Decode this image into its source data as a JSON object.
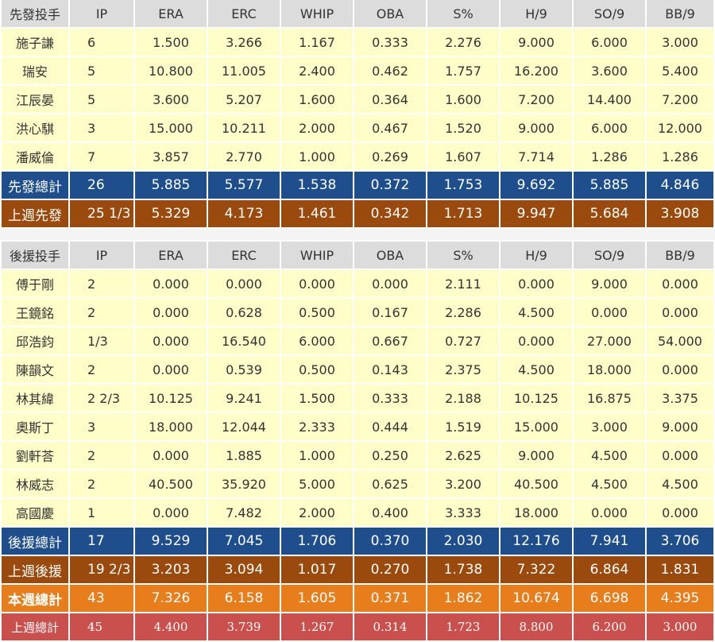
{
  "columns": [
    "IP",
    "ERA",
    "ERC",
    "WHIP",
    "OBA",
    "S%",
    "H/9",
    "SO/9",
    "BB/9"
  ],
  "starters": {
    "header_label": "先發投手",
    "rows": [
      {
        "name": "施子謙",
        "ip": "6",
        "era": "1.500",
        "erc": "3.266",
        "whip": "1.167",
        "oba": "0.333",
        "s": "2.276",
        "h9": "9.000",
        "so9": "6.000",
        "bb9": "3.000"
      },
      {
        "name": "瑞安",
        "ip": "5",
        "era": "10.800",
        "erc": "11.005",
        "whip": "2.400",
        "oba": "0.462",
        "s": "1.757",
        "h9": "16.200",
        "so9": "3.600",
        "bb9": "5.400"
      },
      {
        "name": "江辰晏",
        "ip": "5",
        "era": "3.600",
        "erc": "5.207",
        "whip": "1.600",
        "oba": "0.364",
        "s": "1.600",
        "h9": "7.200",
        "so9": "14.400",
        "bb9": "7.200"
      },
      {
        "name": "洪心騏",
        "ip": "3",
        "era": "15.000",
        "erc": "10.211",
        "whip": "2.000",
        "oba": "0.467",
        "s": "1.520",
        "h9": "9.000",
        "so9": "6.000",
        "bb9": "12.000"
      },
      {
        "name": "潘威倫",
        "ip": "7",
        "era": "3.857",
        "erc": "2.770",
        "whip": "1.000",
        "oba": "0.269",
        "s": "1.607",
        "h9": "7.714",
        "so9": "1.286",
        "bb9": "1.286"
      }
    ],
    "total": {
      "name": "先發總計",
      "ip": "26",
      "era": "5.885",
      "erc": "5.577",
      "whip": "1.538",
      "oba": "0.372",
      "s": "1.753",
      "h9": "9.692",
      "so9": "5.885",
      "bb9": "4.846"
    },
    "last_week": {
      "name": "上週先發",
      "ip": "25 1/3",
      "era": "5.329",
      "erc": "4.173",
      "whip": "1.461",
      "oba": "0.342",
      "s": "1.713",
      "h9": "9.947",
      "so9": "5.684",
      "bb9": "3.908"
    }
  },
  "relievers": {
    "header_label": "後援投手",
    "rows": [
      {
        "name": "傅于剛",
        "ip": "2",
        "era": "0.000",
        "erc": "0.000",
        "whip": "0.000",
        "oba": "0.000",
        "s": "2.111",
        "h9": "0.000",
        "so9": "9.000",
        "bb9": "0.000"
      },
      {
        "name": "王鏡銘",
        "ip": "2",
        "era": "0.000",
        "erc": "0.628",
        "whip": "0.500",
        "oba": "0.167",
        "s": "2.286",
        "h9": "4.500",
        "so9": "0.000",
        "bb9": "0.000"
      },
      {
        "name": "邱浩鈞",
        "ip": "1/3",
        "era": "0.000",
        "erc": "16.540",
        "whip": "6.000",
        "oba": "0.667",
        "s": "0.727",
        "h9": "0.000",
        "so9": "27.000",
        "bb9": "54.000"
      },
      {
        "name": "陳韻文",
        "ip": "2",
        "era": "0.000",
        "erc": "0.539",
        "whip": "0.500",
        "oba": "0.143",
        "s": "2.375",
        "h9": "4.500",
        "so9": "18.000",
        "bb9": "0.000"
      },
      {
        "name": "林其緯",
        "ip": "2 2/3",
        "era": "10.125",
        "erc": "9.241",
        "whip": "1.500",
        "oba": "0.333",
        "s": "2.188",
        "h9": "10.125",
        "so9": "16.875",
        "bb9": "3.375"
      },
      {
        "name": "奧斯丁",
        "ip": "3",
        "era": "18.000",
        "erc": "12.044",
        "whip": "2.333",
        "oba": "0.444",
        "s": "1.519",
        "h9": "15.000",
        "so9": "3.000",
        "bb9": "9.000"
      },
      {
        "name": "劉軒荅",
        "ip": "2",
        "era": "0.000",
        "erc": "1.885",
        "whip": "1.000",
        "oba": "0.250",
        "s": "2.625",
        "h9": "9.000",
        "so9": "4.500",
        "bb9": "0.000"
      },
      {
        "name": "林威志",
        "ip": "2",
        "era": "40.500",
        "erc": "35.920",
        "whip": "5.000",
        "oba": "0.625",
        "s": "3.200",
        "h9": "40.500",
        "so9": "4.500",
        "bb9": "4.500"
      },
      {
        "name": "高國慶",
        "ip": "1",
        "era": "0.000",
        "erc": "7.482",
        "whip": "2.000",
        "oba": "0.400",
        "s": "3.333",
        "h9": "18.000",
        "so9": "0.000",
        "bb9": "0.000"
      }
    ],
    "total": {
      "name": "後援總計",
      "ip": "17",
      "era": "9.529",
      "erc": "7.045",
      "whip": "1.706",
      "oba": "0.370",
      "s": "2.030",
      "h9": "12.176",
      "so9": "7.941",
      "bb9": "3.706"
    },
    "last_week": {
      "name": "上週後援",
      "ip": "19 2/3",
      "era": "3.203",
      "erc": "3.094",
      "whip": "1.017",
      "oba": "0.270",
      "s": "1.738",
      "h9": "7.322",
      "so9": "6.864",
      "bb9": "1.831"
    }
  },
  "week_total": {
    "name": "本週總計",
    "ip": "43",
    "era": "7.326",
    "erc": "6.158",
    "whip": "1.605",
    "oba": "0.371",
    "s": "1.862",
    "h9": "10.674",
    "so9": "6.698",
    "bb9": "4.395"
  },
  "prev_week_total": {
    "name": "上週總計",
    "ip": "45",
    "era": "4.400",
    "erc": "3.739",
    "whip": "1.267",
    "oba": "0.314",
    "s": "1.723",
    "h9": "8.800",
    "so9": "6.200",
    "bb9": "3.000"
  },
  "colors": {
    "header": "#dcdcdc",
    "row": "#fffdc8",
    "total": "#1f4e8c",
    "last_week": "#9a4a0c",
    "week_total": "#e87d1c",
    "prev_week_total": "#c9504c"
  }
}
